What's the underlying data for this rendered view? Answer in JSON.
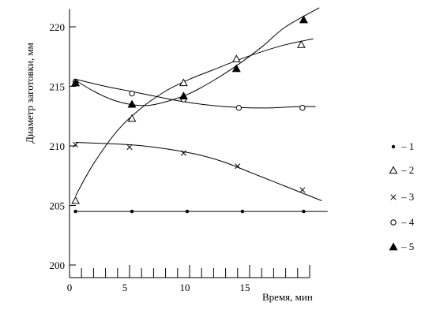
{
  "chart_data": {
    "type": "line",
    "title": "",
    "xlabel": "Время, мин",
    "ylabel": "Диаметр заготовки, мм",
    "xlim": [
      0,
      20
    ],
    "ylim": [
      200,
      221.5
    ],
    "x_ticks": [
      0,
      5,
      10,
      15
    ],
    "y_ticks": [
      200,
      205,
      210,
      215,
      220
    ],
    "grid": false,
    "legend_position": "right",
    "series": [
      {
        "name": "1",
        "marker": "dot",
        "x": [
          0.5,
          5.2,
          9.8,
          14.4,
          19.5
        ],
        "y": [
          204.5,
          204.5,
          204.5,
          204.5,
          204.5
        ],
        "curve": [
          [
            0.5,
            204.5
          ],
          [
            5,
            204.5
          ],
          [
            10,
            204.5
          ],
          [
            15,
            204.5
          ],
          [
            21.5,
            204.5
          ]
        ]
      },
      {
        "name": "2",
        "marker": "triangle-open",
        "x": [
          0.5,
          5.2,
          9.5,
          13.9,
          19.3
        ],
        "y": [
          205.4,
          212.3,
          215.3,
          217.3,
          218.5
        ],
        "curve": [
          [
            0.5,
            205.8
          ],
          [
            2,
            208.5
          ],
          [
            4,
            211.3
          ],
          [
            6,
            213.2
          ],
          [
            8,
            214.6
          ],
          [
            10,
            215.6
          ],
          [
            12,
            216.4
          ],
          [
            14,
            217.2
          ],
          [
            16,
            217.9
          ],
          [
            18,
            218.5
          ],
          [
            20.3,
            219.0
          ]
        ]
      },
      {
        "name": "3",
        "marker": "x",
        "x": [
          0.5,
          5,
          9.5,
          14,
          19.4
        ],
        "y": [
          210.1,
          209.9,
          209.4,
          208.3,
          206.3
        ],
        "curve": [
          [
            0.5,
            210.3
          ],
          [
            3,
            210.2
          ],
          [
            5,
            210.1
          ],
          [
            7,
            209.9
          ],
          [
            9,
            209.6
          ],
          [
            11,
            209.2
          ],
          [
            13,
            208.6
          ],
          [
            15,
            207.8
          ],
          [
            17,
            207.0
          ],
          [
            19,
            206.2
          ],
          [
            21,
            205.4
          ]
        ]
      },
      {
        "name": "4",
        "marker": "circle-open",
        "x": [
          0.5,
          5.2,
          9.5,
          14.1,
          19.4
        ],
        "y": [
          215.4,
          214.4,
          213.9,
          213.2,
          213.2
        ],
        "curve": [
          [
            0.5,
            215.6
          ],
          [
            3,
            215.0
          ],
          [
            5,
            214.6
          ],
          [
            7,
            214.2
          ],
          [
            9,
            213.8
          ],
          [
            11,
            213.5
          ],
          [
            13,
            213.3
          ],
          [
            15,
            213.2
          ],
          [
            17,
            213.2
          ],
          [
            19,
            213.3
          ],
          [
            20.5,
            213.3
          ]
        ]
      },
      {
        "name": "5",
        "marker": "triangle-filled",
        "x": [
          0.5,
          5.2,
          9.5,
          13.9,
          19.5
        ],
        "y": [
          215.3,
          213.5,
          214.2,
          216.5,
          220.6
        ],
        "curve": [
          [
            0.5,
            215.5
          ],
          [
            2,
            214.6
          ],
          [
            3.5,
            213.9
          ],
          [
            5,
            213.5
          ],
          [
            6.5,
            213.4
          ],
          [
            8,
            213.7
          ],
          [
            10,
            214.4
          ],
          [
            12,
            215.5
          ],
          [
            14,
            216.8
          ],
          [
            16,
            218.3
          ],
          [
            18,
            220.0
          ],
          [
            20.8,
            221.6
          ]
        ]
      }
    ]
  }
}
